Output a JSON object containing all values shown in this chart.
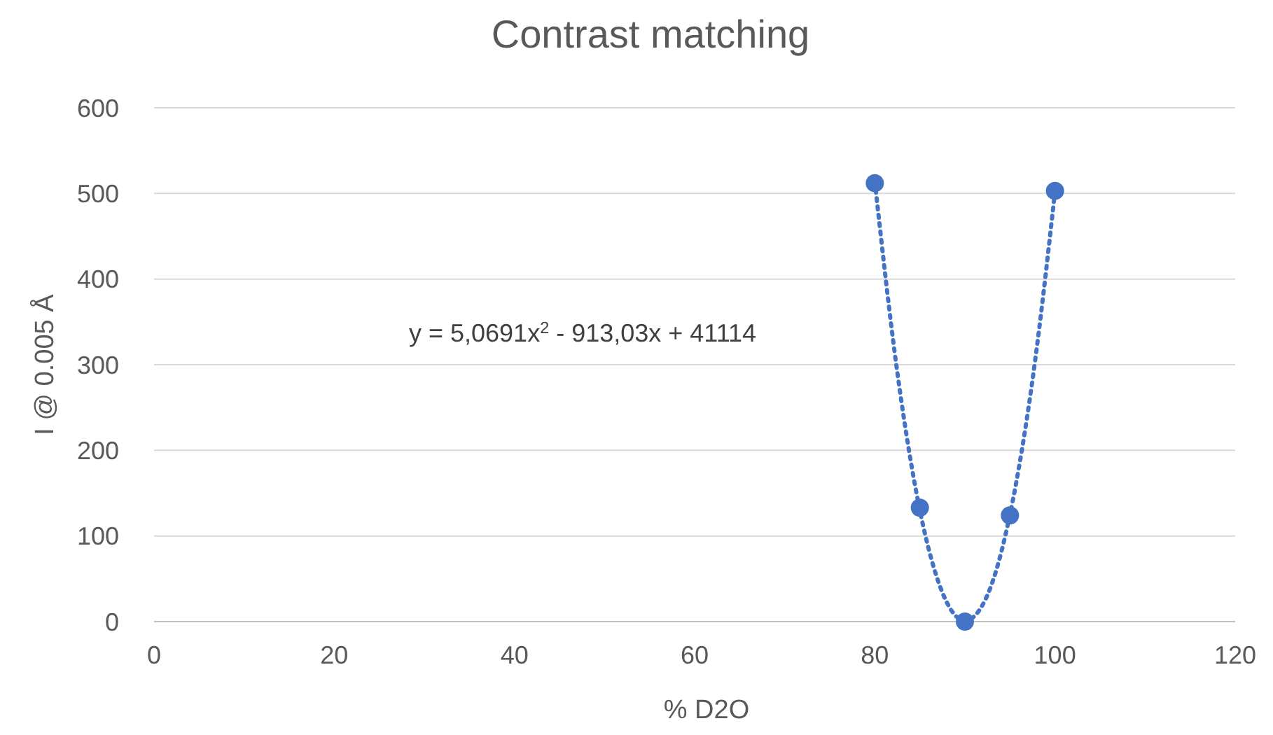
{
  "chart_data": {
    "type": "scatter",
    "title": "Contrast matching",
    "xlabel": "% D2O",
    "ylabel": "I @ 0.005 Å",
    "xlim": [
      0,
      120
    ],
    "xticks": [
      0,
      20,
      40,
      60,
      80,
      100,
      120
    ],
    "ylim": [
      0,
      600
    ],
    "yticks": [
      0,
      100,
      200,
      300,
      400,
      500,
      600
    ],
    "grid": "y",
    "marker": "circle",
    "series": [
      {
        "color": "#4472c4",
        "x": [
          80,
          85,
          90,
          95,
          100
        ],
        "values": [
          512,
          133,
          0,
          124,
          503
        ]
      },
      {
        "type": "line",
        "color": "#4472c4",
        "line_style": "dotted",
        "marker": "none",
        "x": [
          80,
          82.5,
          85,
          87.5,
          90,
          92.5,
          95,
          97.5,
          100
        ],
        "values": [
          514,
          291,
          130,
          34,
          1,
          31,
          125,
          282,
          502
        ]
      }
    ],
    "annotations": [
      "y = 5,0691x$^{2}$ - 913,03x + 41114"
    ]
  }
}
